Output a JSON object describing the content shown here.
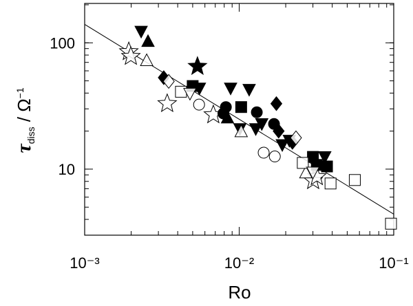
{
  "chart_data": {
    "type": "scatter",
    "x_label": "Ro",
    "y_label": {
      "symbol": "τ",
      "sub": "diss",
      "mid": " / Ω",
      "sup": "−1"
    },
    "xlim": [
      0.001,
      0.1
    ],
    "ylim": [
      3.0,
      205
    ],
    "xscale": "log",
    "yscale": "log",
    "xticks": [
      {
        "value": 0.001,
        "label": "10⁻³"
      },
      {
        "value": 0.01,
        "label": "10⁻²"
      },
      {
        "value": 0.1,
        "label": "10⁻¹"
      }
    ],
    "yticks": [
      10,
      100
    ],
    "color": "#000000",
    "fit_line": {
      "x": [
        0.001,
        0.1
      ],
      "y": [
        140,
        4.4
      ]
    },
    "series": [
      {
        "marker": "star",
        "filled": false,
        "x": [
          0.00193,
          0.00199,
          0.00342,
          0.0068,
          0.0301,
          0.0318
        ],
        "values": [
          85,
          78,
          33,
          26.9,
          8.1,
          8.7
        ]
      },
      {
        "marker": "star",
        "filled": true,
        "x": [
          0.00537
        ],
        "values": [
          65
        ]
      },
      {
        "marker": "triangle-down",
        "filled": true,
        "x": [
          0.00232,
          0.00553,
          0.0088,
          0.0116,
          0.0128,
          0.0101,
          0.0211,
          0.019,
          0.0358,
          0.014
        ],
        "values": [
          124,
          44,
          44,
          43,
          21,
          21,
          17,
          15.7,
          12.6,
          23
        ]
      },
      {
        "marker": "triangle-up",
        "filled": true,
        "x": [
          0.00257,
          0.0084
        ],
        "values": [
          102,
          25.3
        ]
      },
      {
        "marker": "circle",
        "filled": true,
        "x": [
          0.0082,
          0.013,
          0.0079,
          0.0168
        ],
        "values": [
          31,
          28.2,
          27.6,
          22.8
        ]
      },
      {
        "marker": "square",
        "filled": true,
        "x": [
          0.005,
          0.0103,
          0.03,
          0.0318,
          0.037
        ],
        "values": [
          45.5,
          31,
          12.5,
          10.8,
          10.5
        ]
      },
      {
        "marker": "diamond",
        "filled": true,
        "x": [
          0.00325,
          0.0174,
          0.018,
          0.0221
        ],
        "values": [
          53,
          33,
          20,
          16.3
        ]
      },
      {
        "marker": "circle",
        "filled": false,
        "x": [
          0.0055,
          0.0144,
          0.017
        ],
        "values": [
          32.4,
          13.5,
          12.6
        ]
      },
      {
        "marker": "diamond",
        "filled": false,
        "x": [
          0.0035,
          0.0233
        ],
        "values": [
          49.5,
          17.7
        ]
      },
      {
        "marker": "triangle-up",
        "filled": false,
        "x": [
          0.00252,
          0.0103,
          0.027
        ],
        "values": [
          72,
          19.7,
          9.3
        ]
      },
      {
        "marker": "square",
        "filled": false,
        "x": [
          0.0042,
          0.0258,
          0.056,
          0.039,
          0.096
        ],
        "values": [
          41,
          11.2,
          8.2,
          7.7,
          3.7
        ]
      },
      {
        "marker": "triangle-down",
        "filled": false,
        "x": [
          0.0048,
          0.03
        ],
        "values": [
          40,
          9.5
        ]
      }
    ]
  }
}
